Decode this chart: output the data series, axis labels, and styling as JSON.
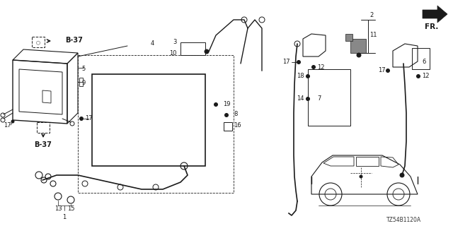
{
  "bg_color": "#f5f5f5",
  "line_color": "#1a1a1a",
  "diagram_code": "TZ54B1120A",
  "direction_label": "FR.",
  "figsize": [
    6.4,
    3.2
  ],
  "dpi": 100
}
